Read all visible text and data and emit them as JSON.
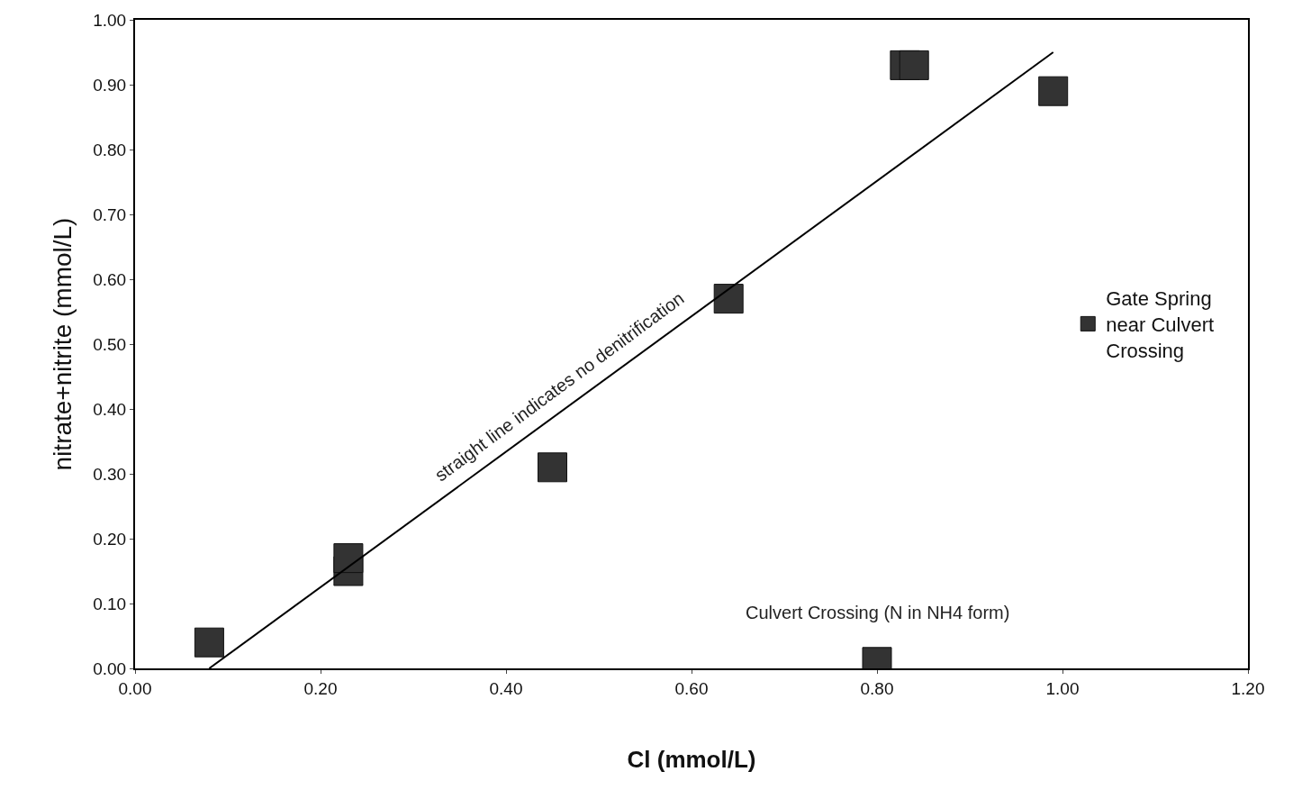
{
  "chart_data": {
    "type": "scatter",
    "xlabel": "Cl (mmol/L)",
    "ylabel": "nitrate+nitrite (mmol/L)",
    "xlim": [
      0,
      1.2
    ],
    "ylim": [
      0,
      1.0
    ],
    "xticks": [
      {
        "value": 0,
        "label": "0.00"
      },
      {
        "value": 0.2,
        "label": "0.20"
      },
      {
        "value": 0.4,
        "label": "0.40"
      },
      {
        "value": 0.6,
        "label": "0.60"
      },
      {
        "value": 0.8,
        "label": "0.80"
      },
      {
        "value": 1.0,
        "label": "1.00"
      },
      {
        "value": 1.2,
        "label": "1.20"
      }
    ],
    "yticks": [
      {
        "value": 0,
        "label": "0.00"
      },
      {
        "value": 0.1,
        "label": "0.10"
      },
      {
        "value": 0.2,
        "label": "0.20"
      },
      {
        "value": 0.3,
        "label": "0.30"
      },
      {
        "value": 0.4,
        "label": "0.40"
      },
      {
        "value": 0.5,
        "label": "0.50"
      },
      {
        "value": 0.6,
        "label": "0.60"
      },
      {
        "value": 0.7,
        "label": "0.70"
      },
      {
        "value": 0.8,
        "label": "0.80"
      },
      {
        "value": 0.9,
        "label": "0.90"
      },
      {
        "value": 1.0,
        "label": "1.00"
      }
    ],
    "legend": "right",
    "series": [
      {
        "name": "Gate Spring near Culvert Crossing",
        "color": "#333333",
        "marker": "square",
        "x": [
          0.08,
          0.23,
          0.23,
          0.45,
          0.64,
          0.83,
          0.84,
          0.99,
          0.8
        ],
        "values": [
          0.04,
          0.15,
          0.17,
          0.31,
          0.57,
          0.93,
          0.93,
          0.89,
          0.01
        ]
      },
      {
        "type": "line",
        "color": "#000000",
        "line_style": "solid",
        "x": [
          0.08,
          0.99
        ],
        "values": [
          0.0,
          0.95
        ]
      }
    ],
    "annotations": [
      "straight line indicates no denitrification",
      {
        "text": "Culvert Crossing (N in NH4 form)",
        "x": 0.8,
        "y": 0.01
      }
    ]
  }
}
